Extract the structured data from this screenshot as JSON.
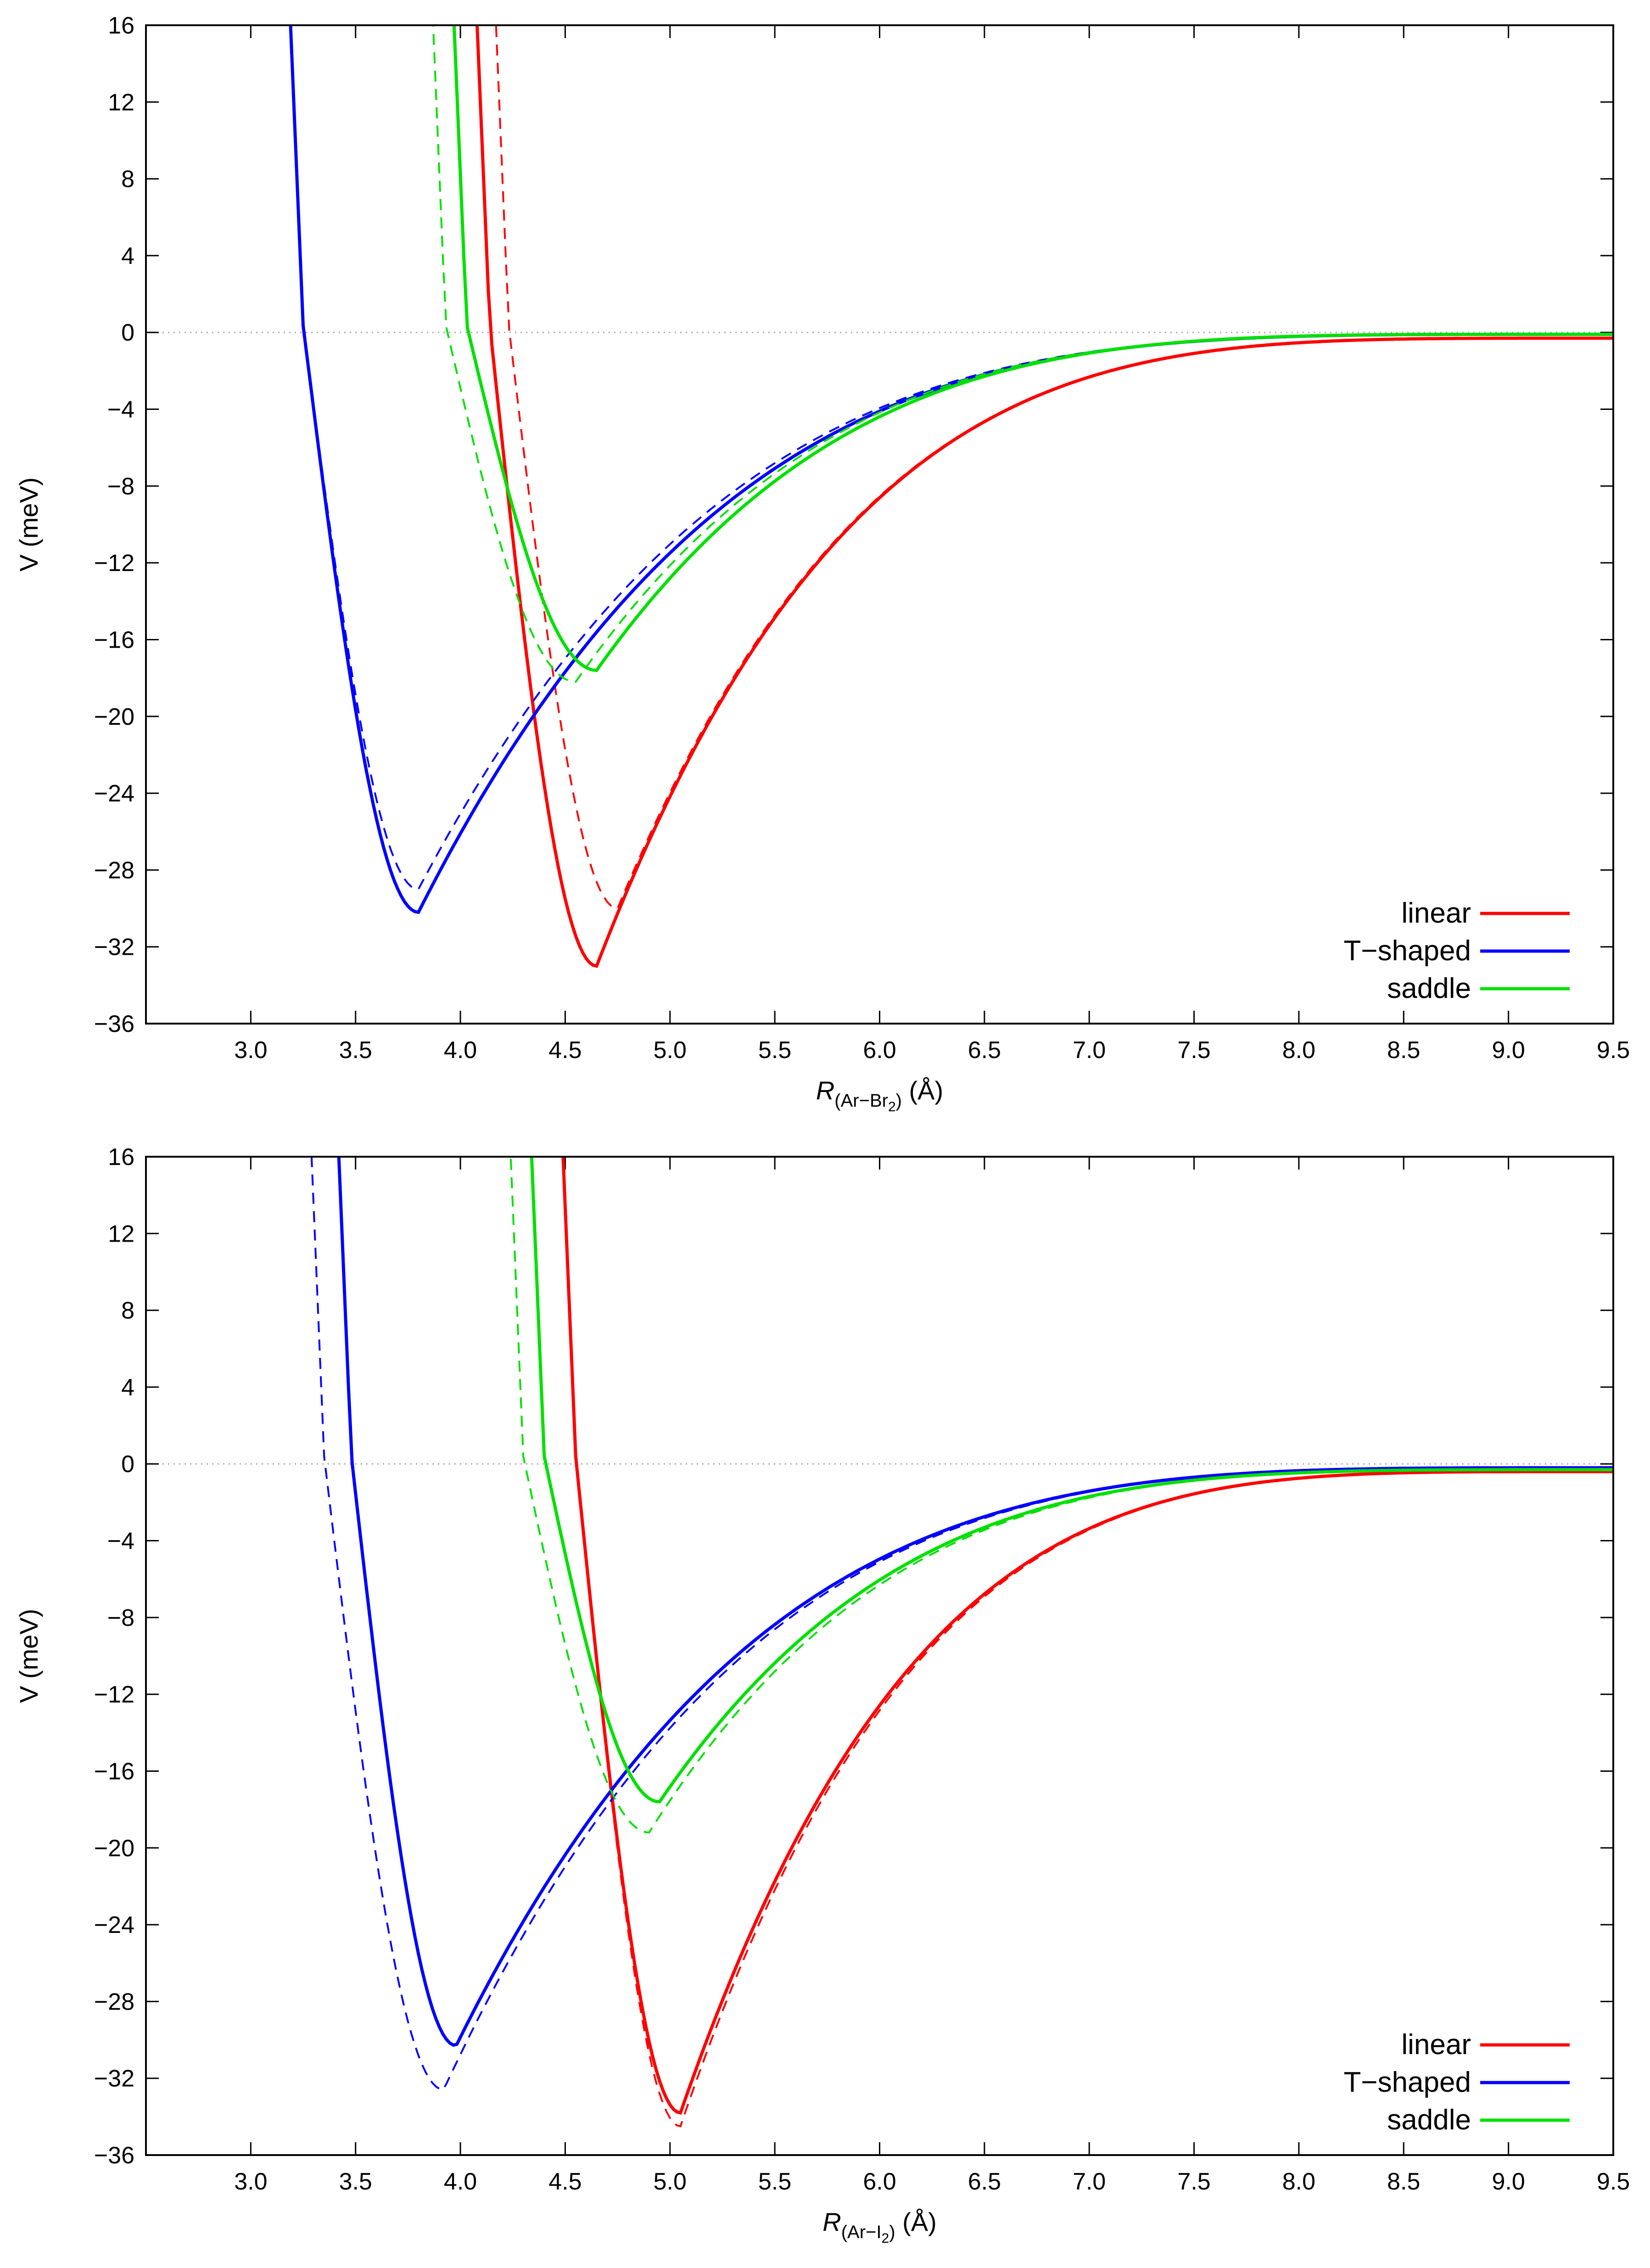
{
  "chart_data": [
    {
      "type": "line",
      "panel": "top",
      "xlabel": {
        "italic": "R",
        "sub_prefix": "(Ar−Br",
        "sub_index": "2",
        "sub_suffix": ")",
        "unit": " (Å)"
      },
      "ylabel": "V (meV)",
      "xlim": [
        2.5,
        9.5
      ],
      "ylim": [
        -36,
        16
      ],
      "xticks": [
        "3.0",
        "3.5",
        "4.0",
        "4.5",
        "5.0",
        "5.5",
        "6.0",
        "6.5",
        "7.0",
        "7.5",
        "8.0",
        "8.5",
        "9.0",
        "9.5"
      ],
      "yticks": [
        "16",
        "12",
        "8",
        "4",
        "0",
        "−4",
        "−8",
        "−12",
        "−16",
        "−20",
        "−24",
        "−28",
        "−32",
        "−36"
      ],
      "zero_line": true,
      "legend": {
        "position": "bottom-right",
        "entries": [
          "linear",
          "T−shaped",
          "saddle"
        ]
      },
      "series": [
        {
          "name": "linear",
          "color": "#ff0000",
          "dashed": false,
          "wall": [
            4.14,
            0.4
          ],
          "min": [
            4.65,
            -33.0
          ],
          "edge": [
            9.5,
            -0.3
          ],
          "tail": 1.2
        },
        {
          "name": "linear",
          "color": "#ff0000",
          "dashed": true,
          "wall": [
            4.23,
            0.4
          ],
          "min": [
            4.75,
            -30.0
          ],
          "edge": [
            9.5,
            -0.3
          ],
          "tail": 1.2
        },
        {
          "name": "T−shaped",
          "color": "#0000ff",
          "dashed": false,
          "wall": [
            3.25,
            0.35
          ],
          "min": [
            3.8,
            -30.2
          ],
          "edge": [
            9.3,
            -0.1
          ],
          "tail": 0.95
        },
        {
          "name": "T−shaped",
          "color": "#0000ff",
          "dashed": true,
          "wall": [
            3.25,
            0.35
          ],
          "min": [
            3.8,
            -29.0
          ],
          "edge": [
            9.3,
            -0.1
          ],
          "tail": 0.95
        },
        {
          "name": "saddle",
          "color": "#00e000",
          "dashed": false,
          "wall": [
            4.03,
            0.4
          ],
          "min": [
            4.65,
            -17.6
          ],
          "edge": [
            9.3,
            -0.1
          ],
          "tail": 1.1
        },
        {
          "name": "saddle",
          "color": "#00e000",
          "dashed": true,
          "wall": [
            3.93,
            0.4
          ],
          "min": [
            4.55,
            -18.2
          ],
          "edge": [
            9.3,
            -0.1
          ],
          "tail": 1.1
        }
      ]
    },
    {
      "type": "line",
      "panel": "bottom",
      "xlabel": {
        "italic": "R",
        "sub_prefix": "(Ar−I",
        "sub_index": "2",
        "sub_suffix": ")",
        "unit": " (Å)"
      },
      "ylabel": "V (meV)",
      "xlim": [
        2.5,
        9.5
      ],
      "ylim": [
        -36,
        16
      ],
      "xticks": [
        "3.0",
        "3.5",
        "4.0",
        "4.5",
        "5.0",
        "5.5",
        "6.0",
        "6.5",
        "7.0",
        "7.5",
        "8.0",
        "8.5",
        "9.0",
        "9.5"
      ],
      "yticks": [
        "16",
        "12",
        "8",
        "4",
        "0",
        "−4",
        "−8",
        "−12",
        "−16",
        "−20",
        "−24",
        "−28",
        "−32",
        "−36"
      ],
      "zero_line": true,
      "legend": {
        "position": "bottom-right",
        "entries": [
          "linear",
          "T−shaped",
          "saddle"
        ]
      },
      "series": [
        {
          "name": "linear",
          "color": "#ff0000",
          "dashed": false,
          "wall": [
            4.55,
            0.4
          ],
          "min": [
            5.05,
            -33.8
          ],
          "edge": [
            9.5,
            -0.4
          ],
          "tail": 1.2
        },
        {
          "name": "linear",
          "color": "#ff0000",
          "dashed": true,
          "wall": [
            4.55,
            0.4
          ],
          "min": [
            5.05,
            -34.5
          ],
          "edge": [
            9.5,
            -0.4
          ],
          "tail": 1.2
        },
        {
          "name": "T−shaped",
          "color": "#0000ff",
          "dashed": false,
          "wall": [
            3.48,
            0.4
          ],
          "min": [
            3.98,
            -30.3
          ],
          "edge": [
            9.5,
            -0.2
          ],
          "tail": 1.05
        },
        {
          "name": "T−shaped",
          "color": "#0000ff",
          "dashed": true,
          "wall": [
            3.35,
            0.4
          ],
          "min": [
            3.92,
            -32.6
          ],
          "edge": [
            9.5,
            -0.2
          ],
          "tail": 1.05
        },
        {
          "name": "saddle",
          "color": "#00e000",
          "dashed": false,
          "wall": [
            4.4,
            0.4
          ],
          "min": [
            4.95,
            -17.6
          ],
          "edge": [
            9.5,
            -0.3
          ],
          "tail": 1.2
        },
        {
          "name": "saddle",
          "color": "#00e000",
          "dashed": true,
          "wall": [
            4.3,
            0.4
          ],
          "min": [
            4.9,
            -19.2
          ],
          "edge": [
            9.5,
            -0.3
          ],
          "tail": 1.2
        }
      ]
    }
  ]
}
